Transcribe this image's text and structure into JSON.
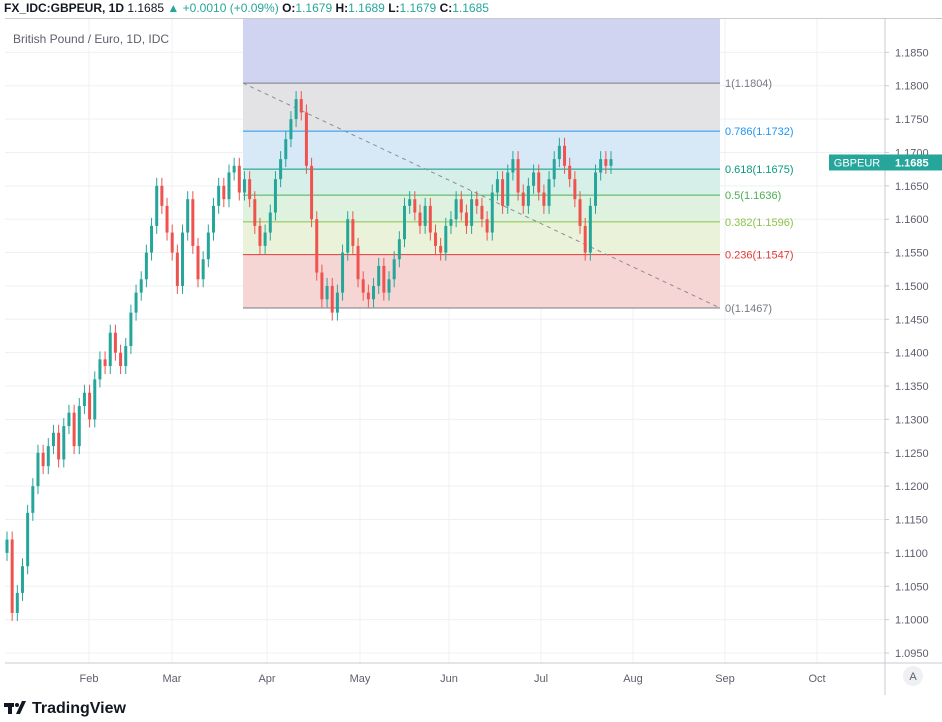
{
  "header": {
    "symbol": "FX_IDC:GBPEUR, 1D",
    "last": "1.1685",
    "arrow": "▲",
    "change": "+0.0010 (+0.09%)",
    "o_label": "O:",
    "o_val": "1.1679",
    "h_label": "H:",
    "h_val": "1.1689",
    "l_label": "L:",
    "l_val": "1.1679",
    "c_label": "C:",
    "c_val": "1.1685"
  },
  "legend_title": "British Pound / Euro, 1D, IDC",
  "price_badge": {
    "symbol": "GBPEUR",
    "value": "1.1685"
  },
  "scale_button": "A",
  "footer": {
    "brand": "TradingView"
  },
  "colors": {
    "up": "#26a69a",
    "down": "#ef5350",
    "grid": "#eef0f3",
    "axis_text": "#5d606b",
    "fib_0": "#787b86",
    "fib_0236": "#e53935",
    "fib_0382": "#8bc34a",
    "fib_05": "#4caf50",
    "fib_0618": "#089981",
    "fib_0786": "#2196f3",
    "fib_1": "#787b86"
  },
  "chart_data": {
    "type": "candlestick",
    "y_ticks": [
      "1.1850",
      "1.1800",
      "1.1750",
      "1.1700",
      "1.1650",
      "1.1600",
      "1.1550",
      "1.1500",
      "1.1450",
      "1.1400",
      "1.1350",
      "1.1300",
      "1.1250",
      "1.1200",
      "1.1150",
      "1.1100",
      "1.1050",
      "1.1000",
      "1.0950"
    ],
    "x_ticks": [
      "Feb",
      "Mar",
      "Apr",
      "May",
      "Jun",
      "Jul",
      "Aug",
      "Sep",
      "Oct"
    ],
    "ylim": [
      1.0935,
      1.19
    ],
    "fib_levels": [
      {
        "ratio": "0",
        "value": 1.1467,
        "label": "0(1.1467)",
        "fill": "#f6d5d5"
      },
      {
        "ratio": "0.236",
        "value": 1.1547,
        "label": "0.236(1.1547)",
        "fill": "#f6d5d5"
      },
      {
        "ratio": "0.382",
        "value": 1.1596,
        "label": "0.382(1.1596)",
        "fill": "#eaf3da"
      },
      {
        "ratio": "0.5",
        "value": 1.1636,
        "label": "0.5(1.1636)",
        "fill": "#dff2e0"
      },
      {
        "ratio": "0.618",
        "value": 1.1675,
        "label": "0.618(1.1675)",
        "fill": "#d6efe8"
      },
      {
        "ratio": "0.786",
        "value": 1.1732,
        "label": "0.786(1.1732)",
        "fill": "#d7e9f7"
      },
      {
        "ratio": "1",
        "value": 1.1804,
        "label": "1(1.1804)",
        "fill": "#e3e3e6"
      }
    ],
    "fib_top_fill": "#d1d4f1",
    "trend_line": {
      "from": {
        "date_index": 0,
        "value": 1.1804
      },
      "to": {
        "date_index": 1,
        "value": 1.1467
      }
    },
    "candles_close": [
      1.112,
      1.101,
      1.104,
      1.108,
      1.116,
      1.12,
      1.125,
      1.123,
      1.126,
      1.128,
      1.124,
      1.129,
      1.131,
      1.126,
      1.132,
      1.134,
      1.13,
      1.136,
      1.139,
      1.138,
      1.143,
      1.14,
      1.138,
      1.141,
      1.146,
      1.149,
      1.151,
      1.155,
      1.159,
      1.165,
      1.162,
      1.158,
      1.155,
      1.15,
      1.158,
      1.163,
      1.156,
      1.151,
      1.154,
      1.158,
      1.162,
      1.165,
      1.163,
      1.167,
      1.168,
      1.164,
      1.166,
      1.163,
      1.159,
      1.156,
      1.158,
      1.161,
      1.166,
      1.169,
      1.172,
      1.175,
      1.178,
      1.176,
      1.168,
      1.16,
      1.152,
      1.148,
      1.15,
      1.146,
      1.149,
      1.155,
      1.16,
      1.156,
      1.151,
      1.149,
      1.148,
      1.15,
      1.153,
      1.149,
      1.151,
      1.154,
      1.157,
      1.162,
      1.163,
      1.161,
      1.159,
      1.162,
      1.158,
      1.156,
      1.155,
      1.159,
      1.16,
      1.163,
      1.161,
      1.159,
      1.163,
      1.162,
      1.16,
      1.158,
      1.164,
      1.166,
      1.162,
      1.167,
      1.169,
      1.164,
      1.162,
      1.165,
      1.167,
      1.164,
      1.162,
      1.166,
      1.169,
      1.171,
      1.168,
      1.166,
      1.163,
      1.159,
      1.155,
      1.162,
      1.167,
      1.169,
      1.168,
      1.169
    ]
  }
}
